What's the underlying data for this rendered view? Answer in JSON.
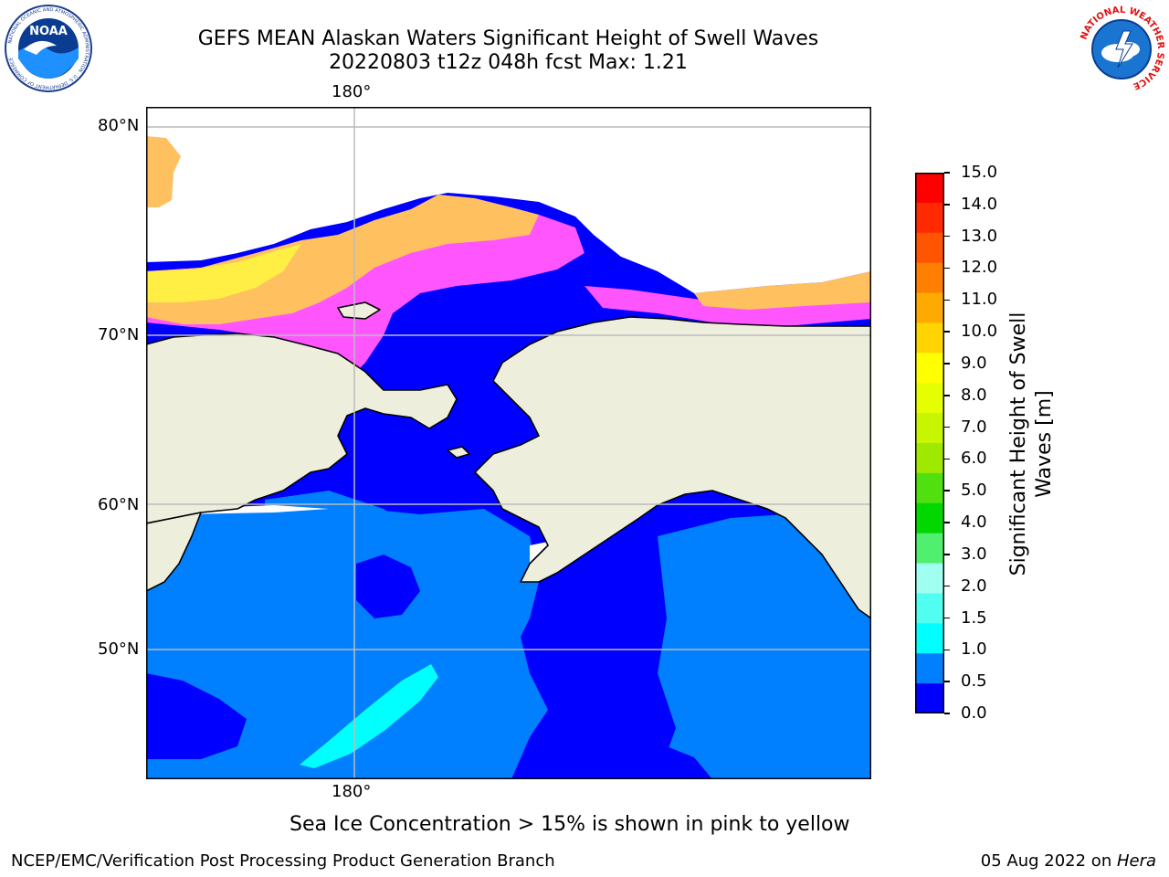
{
  "header": {
    "title_line1": "GEFS MEAN Alaskan Waters Significant Height of Swell Waves",
    "title_line2": "20220803 t12z 048h fcst   Max: 1.21"
  },
  "logos": {
    "noaa_text": "NOAA",
    "noaa_ring_text": "NATIONAL OCEANIC AND ATMOSPHERIC ADMINISTRATION · U.S. DEPARTMENT OF COMMERCE",
    "nws_ring_text": "NATIONAL WEATHER SERVICE"
  },
  "map": {
    "top_lon_label": "180°",
    "bottom_lon_label": "180°",
    "lat_labels": [
      "80°N",
      "70°N",
      "60°N",
      "50°N"
    ]
  },
  "colorbar": {
    "label_line1": "Significant Height of Swell",
    "label_line2": "Waves [m]",
    "ticks": [
      "15.0",
      "14.0",
      "13.0",
      "12.0",
      "11.0",
      "10.0",
      "9.0",
      "8.0",
      "7.0",
      "6.0",
      "5.0",
      "4.0",
      "3.0",
      "2.0",
      "1.5",
      "1.0",
      "0.5",
      "0.0"
    ],
    "colors_top_to_bottom": [
      "#ff0000",
      "#ff2a00",
      "#ff5500",
      "#ff7f00",
      "#ffaa00",
      "#ffd400",
      "#ffff00",
      "#e6ff00",
      "#c8f500",
      "#9fe800",
      "#50e010",
      "#00d800",
      "#50ef70",
      "#a0fff0",
      "#50fff0",
      "#00ffff",
      "#0080ff",
      "#0000ff"
    ]
  },
  "colors": {
    "land": "#eeeedd",
    "swell_0_05": "#0000ff",
    "swell_05_10": "#0080ff",
    "swell_10_15": "#00ffff",
    "ice_pink": "#ff55ff",
    "ice_orange": "#ffc060",
    "ice_yellow": "#ffee44"
  },
  "footer": {
    "caption": "Sea Ice Concentration > 15% is shown in pink to yellow",
    "left": "NCEP/EMC/Verification Post Processing Product Generation Branch",
    "right_prefix": "05 Aug 2022 on ",
    "right_host": "Hera"
  }
}
